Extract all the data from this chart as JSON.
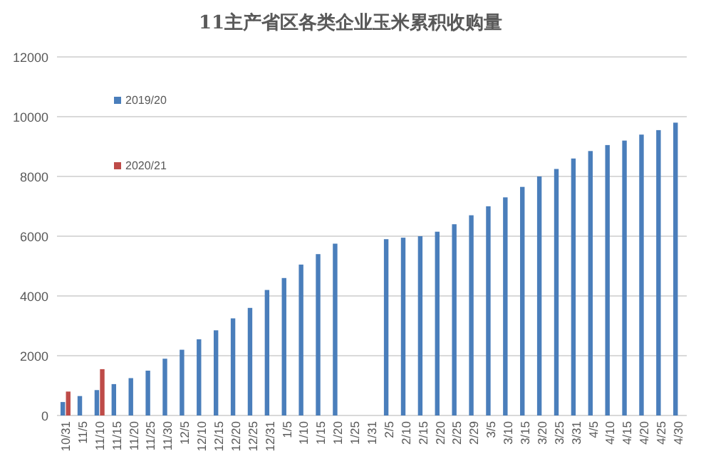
{
  "chart_data": {
    "type": "bar",
    "title": "11主产省区各类企业玉米累积收购量",
    "categories": [
      "10/31",
      "11/5",
      "11/10",
      "11/15",
      "11/20",
      "11/25",
      "11/30",
      "12/5",
      "12/10",
      "12/15",
      "12/20",
      "12/25",
      "12/31",
      "1/5",
      "1/10",
      "1/15",
      "1/20",
      "1/25",
      "1/31",
      "2/5",
      "2/10",
      "2/15",
      "2/20",
      "2/25",
      "2/29",
      "3/5",
      "3/10",
      "3/15",
      "3/20",
      "3/25",
      "3/31",
      "4/5",
      "4/10",
      "4/15",
      "4/20",
      "4/25",
      "4/30"
    ],
    "series": [
      {
        "name": "2019/20",
        "color": "#4a7ebb",
        "values": [
          450,
          650,
          850,
          1050,
          1250,
          1500,
          1900,
          2200,
          2550,
          2850,
          3250,
          3600,
          4200,
          4600,
          5050,
          5400,
          5750,
          null,
          null,
          5900,
          5950,
          6000,
          6150,
          6400,
          6700,
          7000,
          7300,
          7650,
          8000,
          8250,
          8600,
          8850,
          9050,
          9200,
          9400,
          9550,
          9800
        ]
      },
      {
        "name": "2020/21",
        "color": "#be4b48",
        "values": [
          800,
          null,
          1550,
          null,
          null,
          null,
          null,
          null,
          null,
          null,
          null,
          null,
          null,
          null,
          null,
          null,
          null,
          null,
          null,
          null,
          null,
          null,
          null,
          null,
          null,
          null,
          null,
          null,
          null,
          null,
          null,
          null,
          null,
          null,
          null,
          null,
          null
        ]
      }
    ],
    "ylim": [
      0,
      12000
    ],
    "yticks": [
      0,
      2000,
      4000,
      6000,
      8000,
      10000,
      12000
    ],
    "grid": "y",
    "legend": "top left"
  }
}
